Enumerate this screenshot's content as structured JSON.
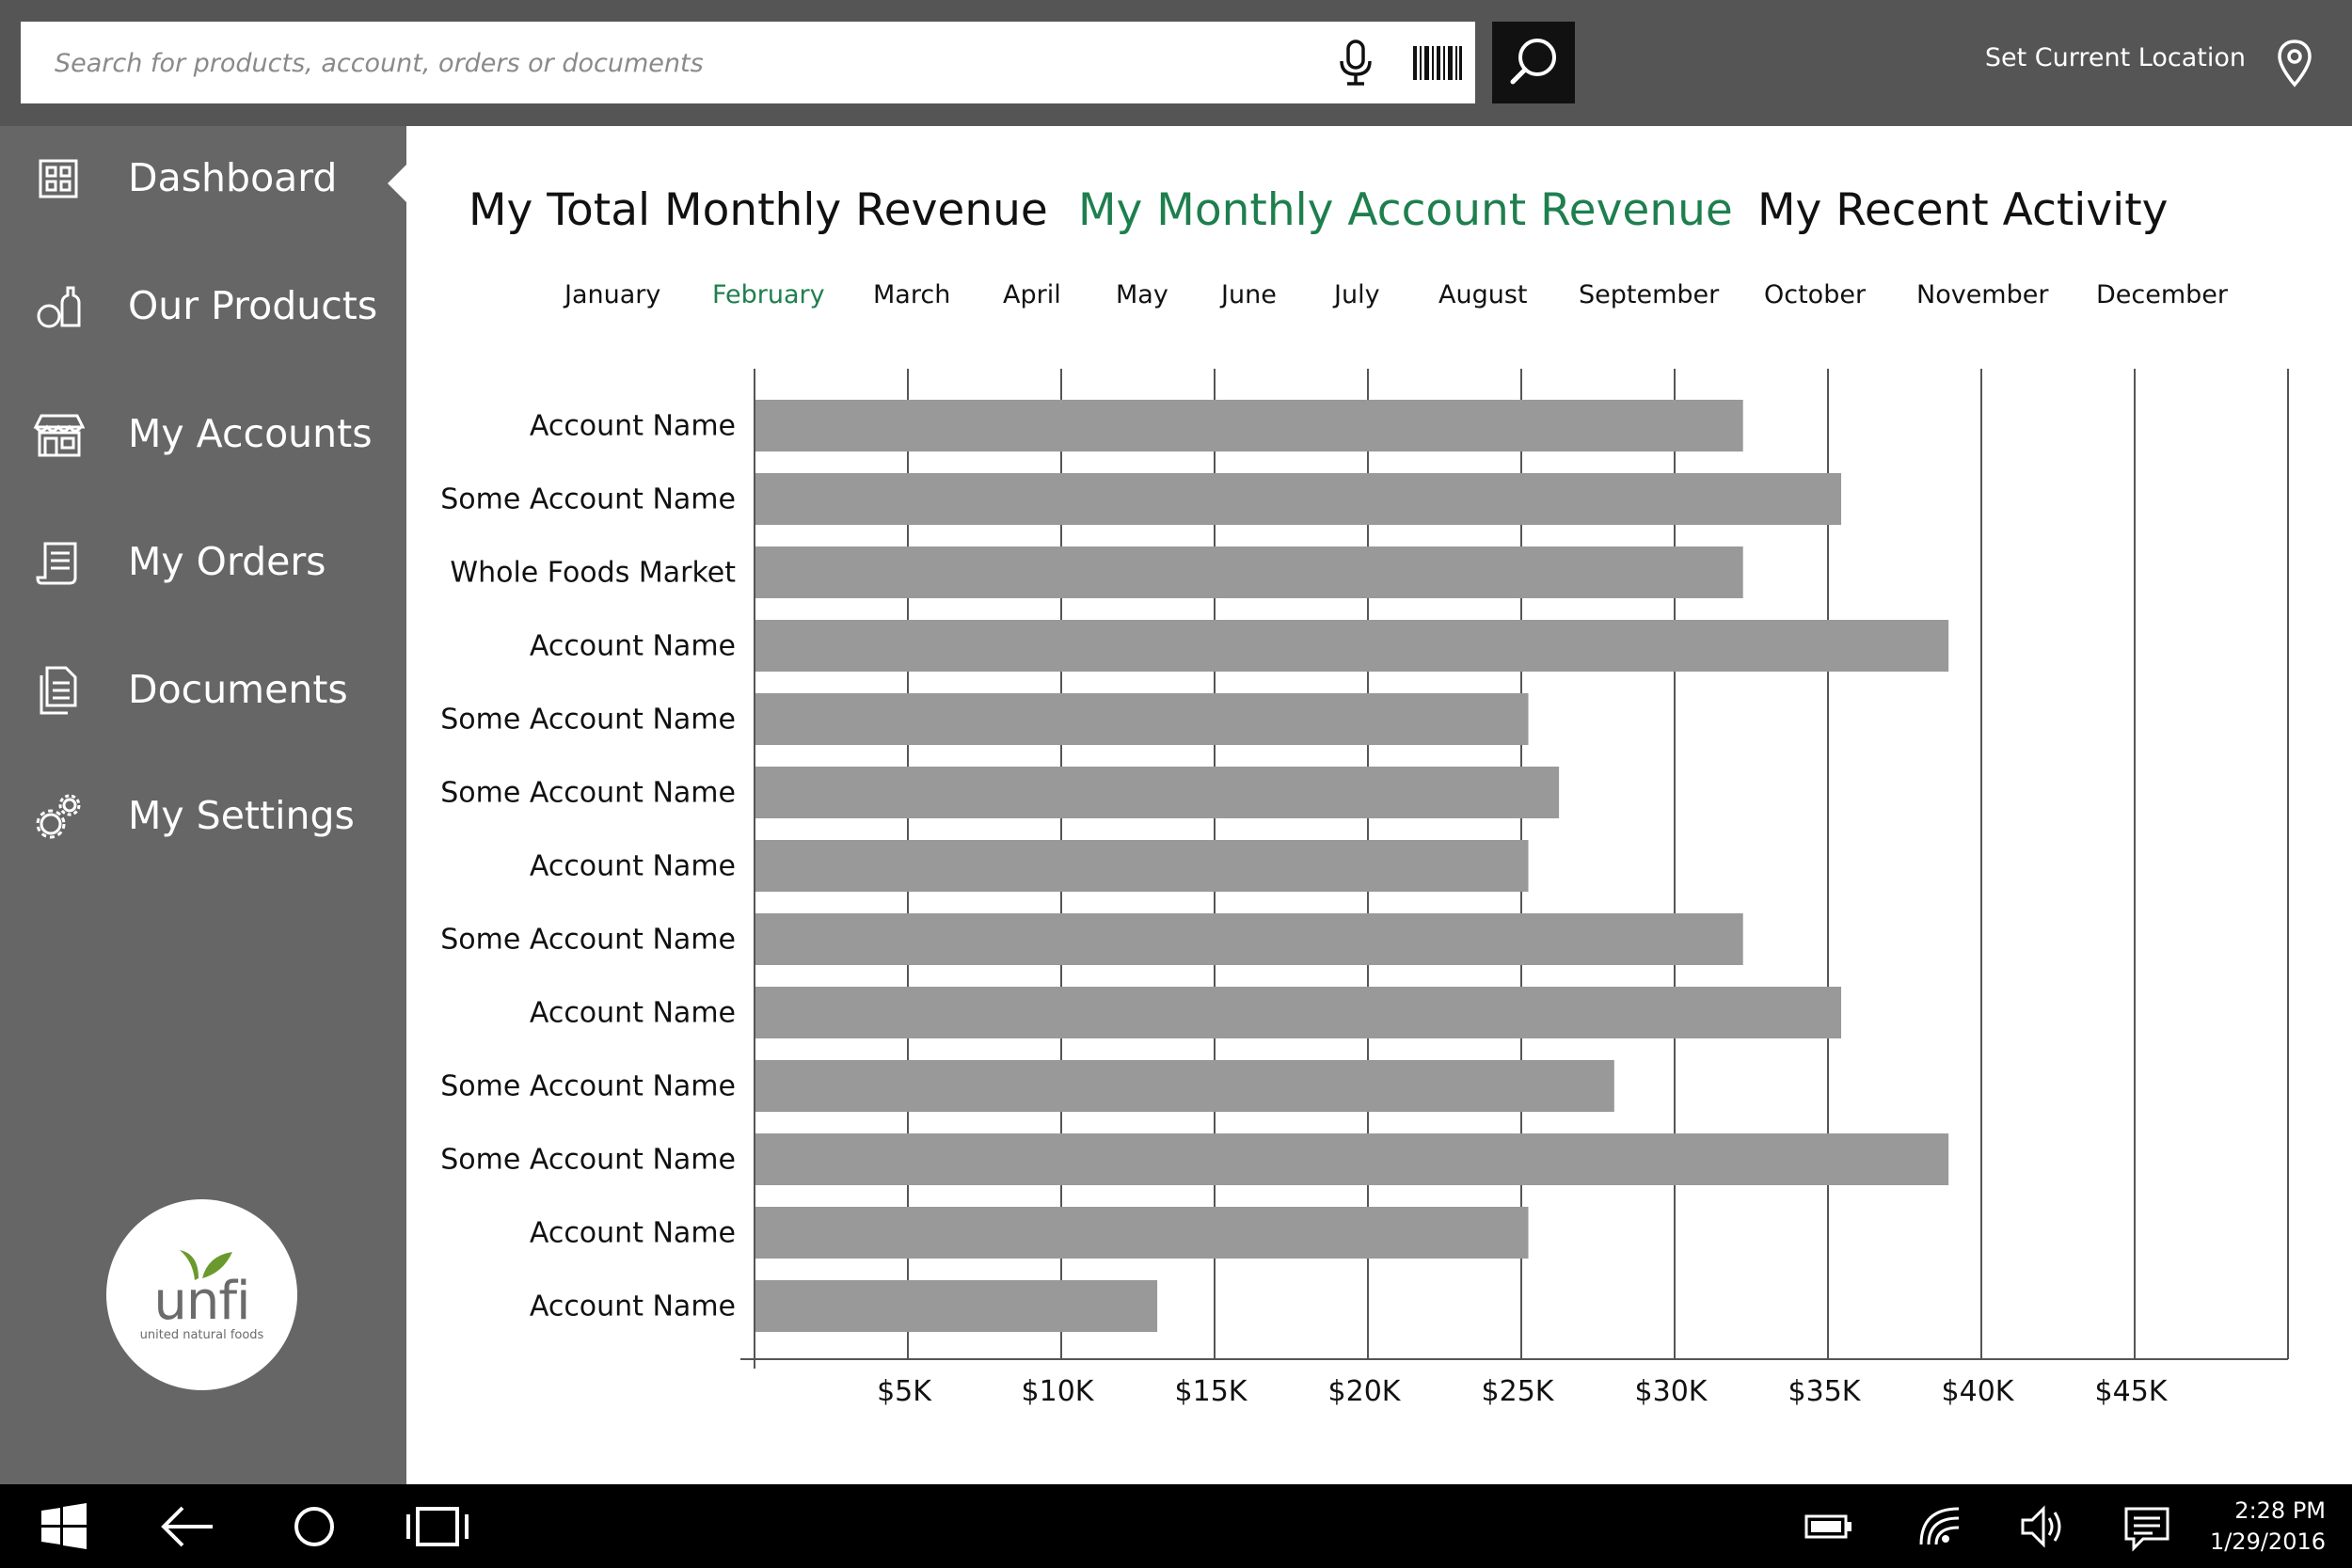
{
  "search": {
    "placeholder": "Search for products, account, orders or documents",
    "location_label": "Set Current Location"
  },
  "sidebar": {
    "items": [
      {
        "label": "Dashboard",
        "icon": "dashboard-icon",
        "active": true
      },
      {
        "label": "Our Products",
        "icon": "products-icon"
      },
      {
        "label": "My Accounts",
        "icon": "store-icon"
      },
      {
        "label": "My Orders",
        "icon": "orders-icon"
      },
      {
        "label": "Documents",
        "icon": "documents-icon"
      },
      {
        "label": "My Settings",
        "icon": "gears-icon"
      }
    ],
    "logo": {
      "word": "unfi",
      "sub": "united natural foods"
    }
  },
  "main": {
    "tabs": [
      {
        "label": "My Total Monthly Revenue",
        "active": false
      },
      {
        "label": "My Monthly Account Revenue",
        "active": true
      },
      {
        "label": "My Recent Activity",
        "active": false
      }
    ],
    "months": [
      "January",
      "February",
      "March",
      "April",
      "May",
      "June",
      "July",
      "August",
      "September",
      "October",
      "November",
      "December"
    ],
    "active_month": "February"
  },
  "colors": {
    "accent_green": "#1e7f4e",
    "bar_gray": "#999999",
    "sidebar_gray": "#666666",
    "topbar_gray": "#555555"
  },
  "chart_data": {
    "type": "bar",
    "orientation": "horizontal",
    "categories": [
      "Account Name",
      "Some Account Name",
      "Whole Foods Market",
      "Account Name",
      "Some Account Name",
      "Some Account Name",
      "Account Name",
      "Some Account Name",
      "Account Name",
      "Some Account Name",
      "Some Account Name",
      "Account Name",
      "Account Name"
    ],
    "values": [
      32200,
      35400,
      32200,
      38900,
      25200,
      26200,
      25200,
      32200,
      35400,
      28000,
      38900,
      25200,
      13100
    ],
    "xlim": [
      0,
      50000
    ],
    "x_ticks": [
      5000,
      10000,
      15000,
      20000,
      25000,
      30000,
      35000,
      40000,
      45000
    ],
    "x_tick_labels": [
      "$5K",
      "$10K",
      "$15K",
      "$20K",
      "$25K",
      "$30K",
      "$35K",
      "$40K",
      "$45K"
    ],
    "grid": true,
    "xlabel": "",
    "ylabel": ""
  },
  "taskbar": {
    "time": "2:28 PM",
    "date": "1/29/2016"
  }
}
